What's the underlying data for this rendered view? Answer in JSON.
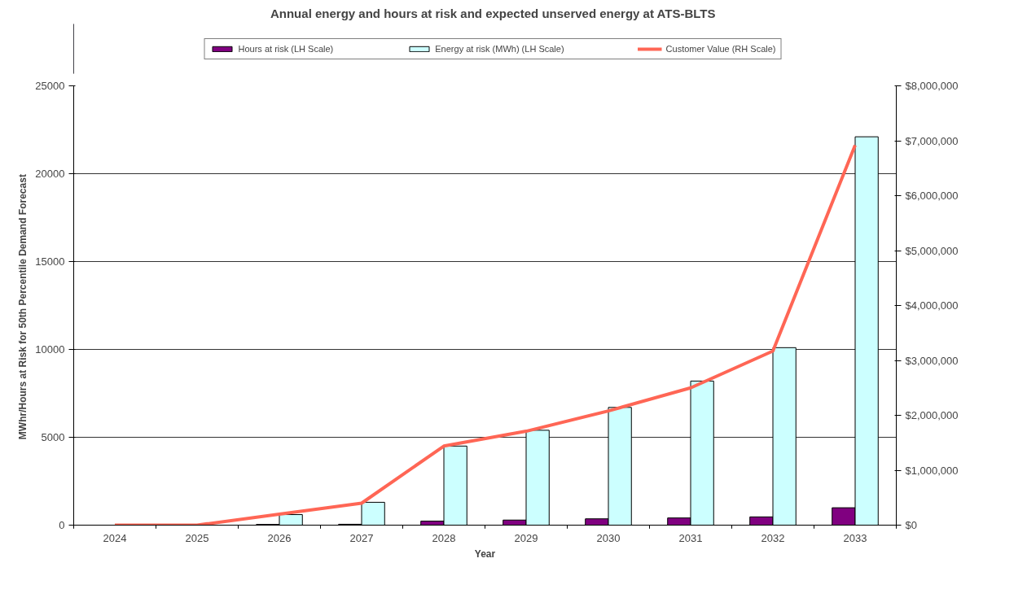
{
  "chart_data": {
    "type": "bar",
    "title": "Annual energy and hours at risk and expected unserved energy at ATS-BLTS",
    "xlabel": "Year",
    "ylabel": "MWhr/Hours at Risk  for 50th Percentile Demand Forecast",
    "categories": [
      "2024",
      "2025",
      "2026",
      "2027",
      "2028",
      "2029",
      "2030",
      "2031",
      "2032",
      "2033"
    ],
    "series": [
      {
        "name": "Hours at risk (LH Scale)",
        "color": "#800080",
        "values": [
          null,
          10,
          40,
          50,
          230,
          290,
          360,
          410,
          470,
          990
        ]
      },
      {
        "name": "Energy at risk (MWh) (LH Scale)",
        "color": "#ccffff",
        "values": [
          null,
          null,
          600,
          1300,
          4500,
          5400,
          6700,
          8200,
          10100,
          22100
        ]
      },
      {
        "name": "Customer Value (RH Scale)",
        "type": "line",
        "axis": "y2",
        "color": "#ff6655",
        "values": [
          0,
          0,
          200000,
          400000,
          1440000,
          1710000,
          2080000,
          2500000,
          3170000,
          6920000
        ]
      }
    ],
    "ylim": [
      0,
      25000
    ],
    "yticks": [
      0,
      5000,
      10000,
      15000,
      20000,
      25000
    ],
    "y2lim": [
      0,
      8000000
    ],
    "y2ticks": [
      {
        "value": 0,
        "label": "$0"
      },
      {
        "value": 1000000,
        "label": "$1,000,000"
      },
      {
        "value": 2000000,
        "label": "$2,000,000"
      },
      {
        "value": 3000000,
        "label": "$3,000,000"
      },
      {
        "value": 4000000,
        "label": "$4,000,000"
      },
      {
        "value": 5000000,
        "label": "$5,000,000"
      },
      {
        "value": 6000000,
        "label": "$6,000,000"
      },
      {
        "value": 7000000,
        "label": "$7,000,000"
      },
      {
        "value": 8000000,
        "label": "$8,000,000"
      }
    ],
    "grid": "y",
    "legend": "top"
  }
}
